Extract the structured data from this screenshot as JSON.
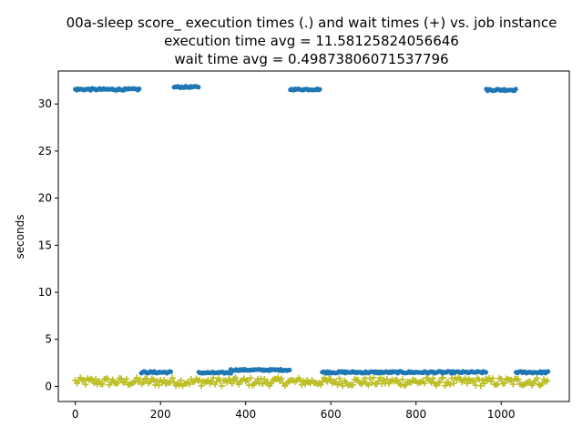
{
  "chart_data": {
    "type": "scatter",
    "title_lines": [
      "00a-sleep score_ execution times (.) and wait times (+) vs. job instance",
      "execution time avg = 11.58125824056646",
      "wait time avg = 0.49873806071537796"
    ],
    "xlabel": "",
    "ylabel": "seconds",
    "xlim": [
      -40,
      1160
    ],
    "ylim": [
      -1.6,
      33.5
    ],
    "xticks": [
      0,
      200,
      400,
      600,
      800,
      1000
    ],
    "yticks": [
      0,
      5,
      10,
      15,
      20,
      25,
      30
    ],
    "grid": false,
    "series": [
      {
        "marker": "dot",
        "color": "#1f77b4",
        "segments": [
          {
            "x_start": 0,
            "x_end": 150,
            "base": 31.55,
            "amp": 0.1
          },
          {
            "x_start": 232,
            "x_end": 290,
            "base": 31.8,
            "amp": 0.08
          },
          {
            "x_start": 505,
            "x_end": 575,
            "base": 31.55,
            "amp": 0.08
          },
          {
            "x_start": 965,
            "x_end": 1035,
            "base": 31.5,
            "amp": 0.1
          },
          {
            "x_start": 155,
            "x_end": 225,
            "base": 1.5,
            "amp": 0.1
          },
          {
            "x_start": 290,
            "x_end": 365,
            "base": 1.45,
            "amp": 0.08
          },
          {
            "x_start": 365,
            "x_end": 505,
            "base": 1.75,
            "amp": 0.08
          },
          {
            "x_start": 580,
            "x_end": 965,
            "base": 1.5,
            "amp": 0.1
          },
          {
            "x_start": 1035,
            "x_end": 1110,
            "base": 1.5,
            "amp": 0.1
          }
        ]
      },
      {
        "marker": "plus",
        "color": "#bcbd22",
        "x_start": 0,
        "x_end": 1110,
        "base": 0.5,
        "amp": 0.45
      }
    ]
  }
}
